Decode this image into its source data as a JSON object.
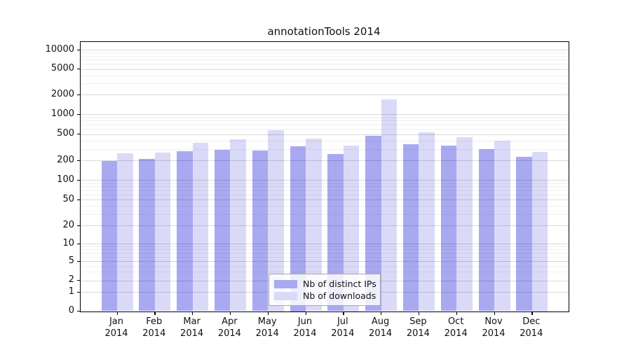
{
  "chart_data": {
    "type": "bar",
    "title": "annotationTools 2014",
    "categories": [
      {
        "month": "Jan",
        "year": "2014"
      },
      {
        "month": "Feb",
        "year": "2014"
      },
      {
        "month": "Mar",
        "year": "2014"
      },
      {
        "month": "Apr",
        "year": "2014"
      },
      {
        "month": "May",
        "year": "2014"
      },
      {
        "month": "Jun",
        "year": "2014"
      },
      {
        "month": "Jul",
        "year": "2014"
      },
      {
        "month": "Aug",
        "year": "2014"
      },
      {
        "month": "Sep",
        "year": "2014"
      },
      {
        "month": "Oct",
        "year": "2014"
      },
      {
        "month": "Nov",
        "year": "2014"
      },
      {
        "month": "Dec",
        "year": "2014"
      }
    ],
    "series": [
      {
        "name": "Nb of distinct IPs",
        "color": "#a9a9f1",
        "values": [
          198,
          210,
          275,
          290,
          283,
          332,
          252,
          470,
          355,
          335,
          295,
          228
        ]
      },
      {
        "name": "Nb of downloads",
        "color": "#dadaf8",
        "values": [
          255,
          265,
          370,
          415,
          575,
          430,
          340,
          1700,
          530,
          455,
          395,
          270
        ]
      }
    ],
    "y_axis": {
      "scale": "log-with-zero",
      "ticks": [
        0,
        1,
        2,
        5,
        10,
        20,
        50,
        100,
        200,
        500,
        1000,
        2000,
        5000,
        10000
      ],
      "range": [
        0,
        10000
      ]
    },
    "x_axis": {
      "label_lines": 2
    },
    "legend_position": "bottom-center-inside",
    "grid": true,
    "colors": {
      "bar_dark": "#a9a9f1",
      "bar_light": "#dadaf8",
      "grid_major": "#d9d9d9",
      "grid_minor": "#f0f0f0",
      "spine": "#000000"
    }
  }
}
